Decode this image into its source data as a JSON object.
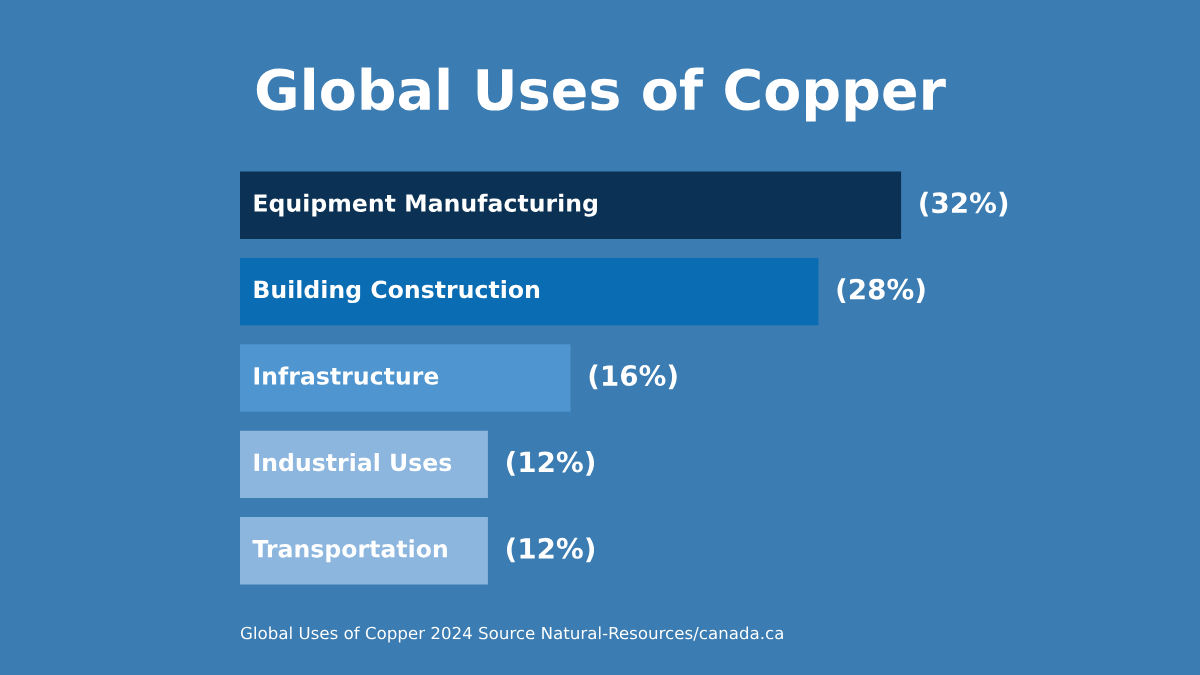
{
  "chart_data": {
    "type": "bar",
    "orientation": "horizontal",
    "title": "Global Uses of Copper",
    "categories": [
      "Equipment Manufacturing",
      "Building Construction",
      "Infrastructure",
      "Industrial Uses",
      "Transportation"
    ],
    "values": [
      32,
      28,
      16,
      12,
      12
    ],
    "colors": [
      "#0b3154",
      "#0a6db3",
      "#4f95cf",
      "#8db6df",
      "#8db6df"
    ],
    "value_labels": [
      "(32%)",
      "(28%)",
      "(16%)",
      "(12%)",
      "(12%)"
    ],
    "tick_labels": false,
    "grid": false,
    "legend": false,
    "annotations": [
      "Global Uses of Copper 2024 Source Natural-Resources/canada.ca"
    ]
  }
}
